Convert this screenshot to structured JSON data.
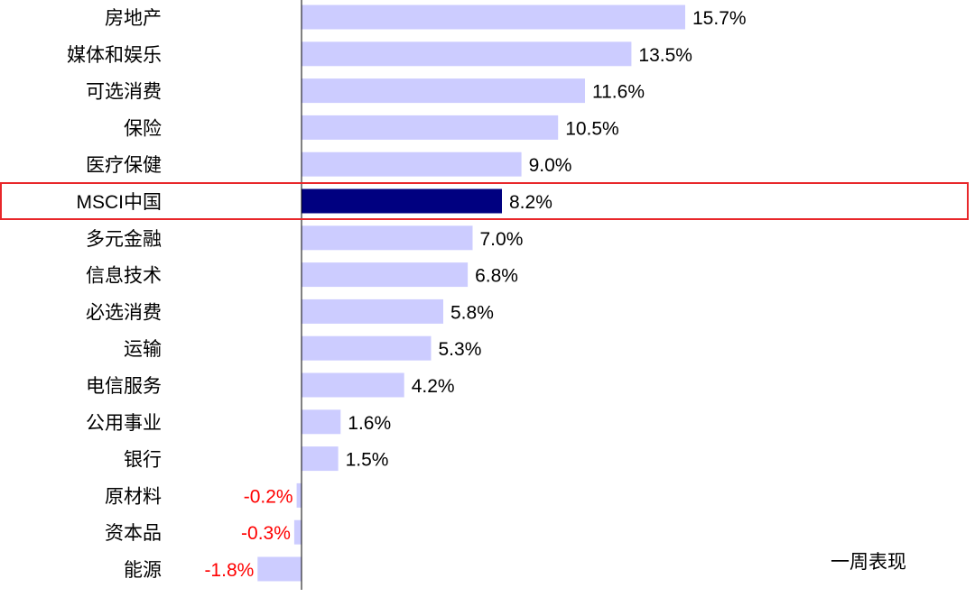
{
  "chart_data": {
    "type": "bar",
    "orientation": "horizontal",
    "title": "",
    "xlabel": "",
    "ylabel": "",
    "categories": [
      "房地产",
      "媒体和娱乐",
      "可选消费",
      "保险",
      "医疗保健",
      "MSCI中国",
      "多元金融",
      "信息技术",
      "必选消费",
      "运输",
      "电信服务",
      "公用事业",
      "银行",
      "原材料",
      "资本品",
      "能源"
    ],
    "series": [
      {
        "name": "一周表现",
        "values": [
          15.7,
          13.5,
          11.6,
          10.5,
          9.0,
          8.2,
          7.0,
          6.8,
          5.8,
          5.3,
          4.2,
          1.6,
          1.5,
          -0.2,
          -0.3,
          -1.8
        ]
      }
    ],
    "value_labels": [
      "15.7%",
      "13.5%",
      "11.6%",
      "10.5%",
      "9.0%",
      "8.2%",
      "7.0%",
      "6.8%",
      "5.8%",
      "5.3%",
      "4.2%",
      "1.6%",
      "1.5%",
      "-0.2%",
      "-0.3%",
      "-1.8%"
    ],
    "highlight_category": "MSCI中国",
    "legend": {
      "text": "一周表现",
      "position": "bottom-right"
    },
    "grid": false,
    "colors": {
      "bar": "#ccccff",
      "highlight_bar": "#000080",
      "negative_label": "#ff0000",
      "positive_label": "#000000",
      "highlight_box": "#e8272a",
      "axis": "#000000"
    }
  }
}
